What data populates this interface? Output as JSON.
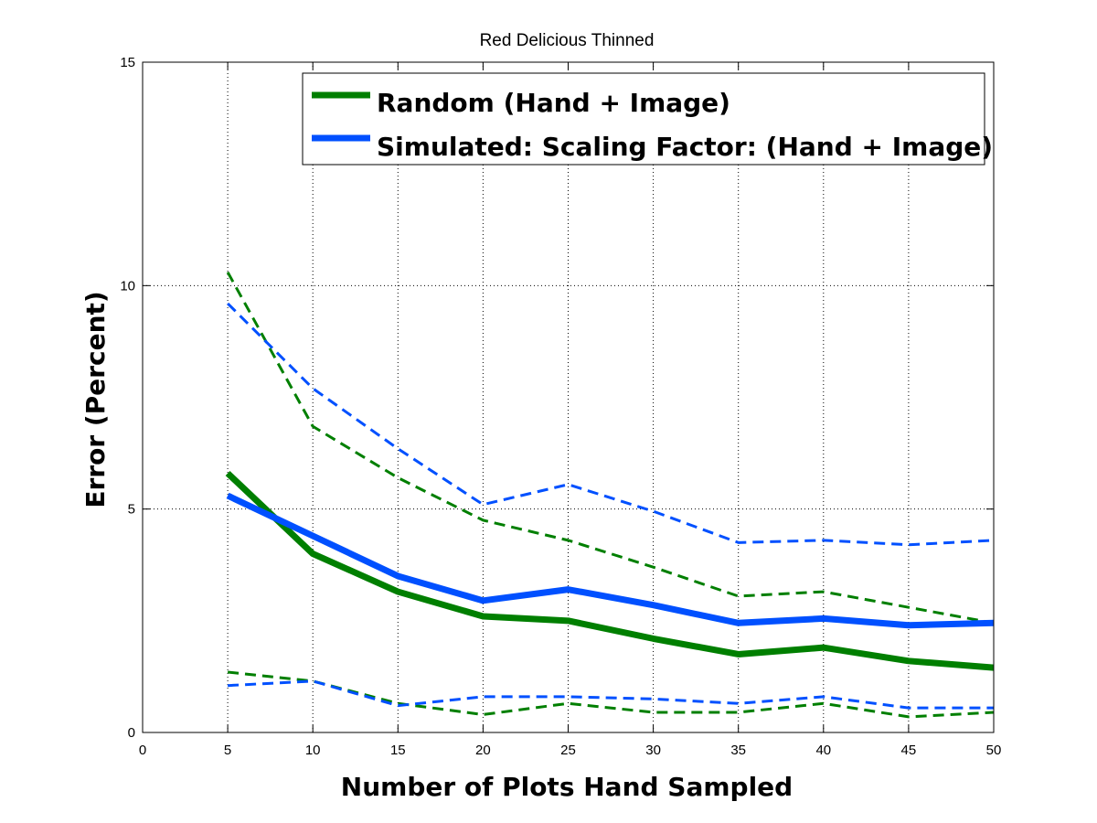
{
  "chart_data": {
    "type": "line",
    "title": "Red Delicious Thinned",
    "xlabel": "Number of Plots Hand Sampled",
    "ylabel": "Error (Percent)",
    "xlim": [
      0,
      50
    ],
    "ylim": [
      0,
      15
    ],
    "x_ticks": [
      0,
      5,
      10,
      15,
      20,
      25,
      30,
      35,
      40,
      45,
      50
    ],
    "y_ticks": [
      0,
      5,
      10,
      15
    ],
    "grid": true,
    "legend_position": "top-right",
    "x": [
      5,
      10,
      15,
      20,
      25,
      30,
      35,
      40,
      45,
      50
    ],
    "series": [
      {
        "name": "Random (Hand + Image)",
        "role": "mean",
        "color": "#007f00",
        "style": "solid",
        "values": [
          5.8,
          4.0,
          3.15,
          2.6,
          2.5,
          2.1,
          1.75,
          1.9,
          1.6,
          1.45
        ]
      },
      {
        "name": "Simulated: Scaling Factor: (Hand + Image)",
        "role": "mean",
        "color": "#0050ff",
        "style": "solid",
        "values": [
          5.3,
          4.4,
          3.5,
          2.95,
          3.2,
          2.85,
          2.45,
          2.55,
          2.4,
          2.45
        ]
      },
      {
        "role": "upper",
        "color": "#007f00",
        "style": "dashed",
        "values": [
          10.3,
          6.85,
          5.7,
          4.75,
          4.3,
          3.7,
          3.05,
          3.15,
          2.8,
          2.45
        ]
      },
      {
        "role": "lower",
        "color": "#007f00",
        "style": "dashed",
        "values": [
          1.35,
          1.15,
          0.65,
          0.4,
          0.65,
          0.45,
          0.45,
          0.65,
          0.35,
          0.45
        ]
      },
      {
        "role": "upper",
        "color": "#0050ff",
        "style": "dashed",
        "values": [
          9.6,
          7.7,
          6.35,
          5.1,
          5.55,
          4.95,
          4.25,
          4.3,
          4.2,
          4.3
        ]
      },
      {
        "role": "lower",
        "color": "#0050ff",
        "style": "dashed",
        "values": [
          1.05,
          1.15,
          0.6,
          0.8,
          0.8,
          0.75,
          0.65,
          0.8,
          0.55,
          0.55
        ]
      }
    ]
  }
}
